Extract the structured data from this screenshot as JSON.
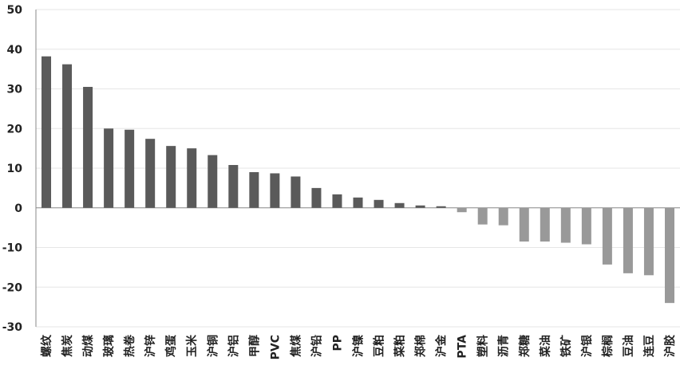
{
  "chart_data": {
    "type": "bar",
    "title": "",
    "xlabel": "",
    "ylabel": "",
    "ylim": [
      -30,
      50
    ],
    "yticks": [
      50,
      40,
      30,
      20,
      10,
      0,
      -10,
      -20,
      -30
    ],
    "grid": true,
    "legend": "none",
    "colors": {
      "positive": "#5a5a5a",
      "negative": "#999999",
      "gridline": "#e6e6e6",
      "axis": "#888888"
    },
    "categories": [
      "螺纹",
      "焦炭",
      "动煤",
      "玻璃",
      "热卷",
      "沪锌",
      "鸡蛋",
      "玉米",
      "沪铜",
      "沪铝",
      "甲醇",
      "PVC",
      "焦煤",
      "沪铅",
      "PP",
      "沪镍",
      "豆粕",
      "菜粕",
      "郑棉",
      "沪金",
      "PTA",
      "塑料",
      "沥青",
      "郑糖",
      "菜油",
      "铁矿",
      "沪银",
      "棕榈",
      "豆油",
      "连豆",
      "沪胶"
    ],
    "values": [
      38.2,
      36.2,
      30.5,
      20.0,
      19.7,
      17.4,
      15.6,
      15.0,
      13.3,
      10.8,
      9.0,
      8.7,
      7.9,
      5.0,
      3.4,
      2.6,
      2.0,
      1.2,
      0.6,
      0.4,
      -1.1,
      -4.2,
      -4.4,
      -8.5,
      -8.5,
      -8.8,
      -9.2,
      -14.3,
      -16.5,
      -17.0,
      -24.0
    ]
  }
}
